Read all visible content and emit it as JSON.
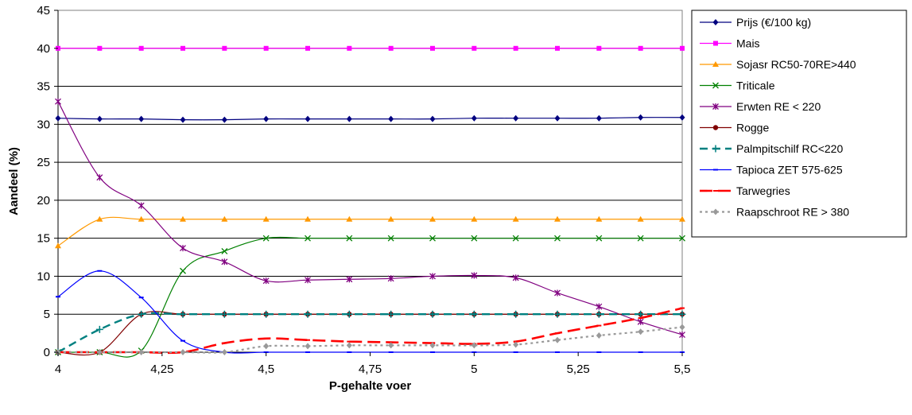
{
  "chart_data": {
    "type": "line",
    "title": "",
    "xlabel": "P-gehalte voer",
    "ylabel": "Aandeel (%)",
    "xlim": [
      4,
      5.5
    ],
    "ylim": [
      0,
      45
    ],
    "x_ticks": [
      4,
      4.25,
      4.5,
      4.75,
      5,
      5.25,
      5.5
    ],
    "x_tick_labels": [
      "4",
      "4,25",
      "4,5",
      "4,75",
      "5",
      "5,25",
      "5,5"
    ],
    "y_ticks": [
      0,
      5,
      10,
      15,
      20,
      25,
      30,
      35,
      40,
      45
    ],
    "y_tick_labels": [
      "0",
      "5",
      "10",
      "15",
      "20",
      "25",
      "30",
      "35",
      "40",
      "45"
    ],
    "grid": "horizontal",
    "legend_position": "right",
    "x": [
      4.0,
      4.1,
      4.2,
      4.3,
      4.4,
      4.5,
      4.6,
      4.7,
      4.8,
      4.9,
      5.0,
      5.1,
      5.2,
      5.3,
      5.4,
      5.5
    ],
    "series": [
      {
        "name": "Prijs (€/100 kg)",
        "color": "#00007f",
        "marker": "diamond",
        "dash": "solid",
        "width": 1.2,
        "values": [
          30.8,
          30.7,
          30.7,
          30.6,
          30.6,
          30.7,
          30.7,
          30.7,
          30.7,
          30.7,
          30.8,
          30.8,
          30.8,
          30.8,
          30.9,
          30.9
        ]
      },
      {
        "name": "Mais",
        "color": "#ff00ff",
        "marker": "square",
        "dash": "solid",
        "width": 1.2,
        "values": [
          40,
          40,
          40,
          40,
          40,
          40,
          40,
          40,
          40,
          40,
          40,
          40,
          40,
          40,
          40,
          40
        ]
      },
      {
        "name": "Sojasr RC50-70RE>440",
        "color": "#ff9900",
        "marker": "triangle",
        "dash": "solid",
        "width": 1.2,
        "values": [
          14.0,
          17.5,
          17.5,
          17.5,
          17.5,
          17.5,
          17.5,
          17.5,
          17.5,
          17.5,
          17.5,
          17.5,
          17.5,
          17.5,
          17.5,
          17.5
        ]
      },
      {
        "name": "Triticale",
        "color": "#008000",
        "marker": "x",
        "dash": "solid",
        "width": 1.2,
        "values": [
          0,
          0,
          0.2,
          10.7,
          13.3,
          15.0,
          15.0,
          15.0,
          15.0,
          15.0,
          15.0,
          15.0,
          15.0,
          15.0,
          15.0,
          15.0
        ]
      },
      {
        "name": "Erwten RE < 220",
        "color": "#800080",
        "marker": "star",
        "dash": "solid",
        "width": 1.2,
        "values": [
          33.0,
          23.0,
          19.3,
          13.7,
          11.9,
          9.4,
          9.5,
          9.6,
          9.7,
          10.0,
          10.1,
          9.8,
          7.8,
          6.0,
          4.0,
          2.3
        ]
      },
      {
        "name": "Rogge",
        "color": "#800000",
        "marker": "circle",
        "dash": "solid",
        "width": 1.2,
        "values": [
          0,
          0,
          5.0,
          5.0,
          5.0,
          5.0,
          5.0,
          5.0,
          5.0,
          5.0,
          5.0,
          5.0,
          5.0,
          5.0,
          5.0,
          5.0
        ]
      },
      {
        "name": "Palmpitschilf RC<220",
        "color": "#008080",
        "marker": "plus",
        "dash": "dash",
        "width": 2.4,
        "values": [
          0,
          3.0,
          5.0,
          5.0,
          5.0,
          5.0,
          5.0,
          5.0,
          5.0,
          5.0,
          5.0,
          5.0,
          5.0,
          5.0,
          5.0,
          5.0
        ]
      },
      {
        "name": "Tapioca ZET 575-625",
        "color": "#0000ff",
        "marker": "dash",
        "dash": "solid",
        "width": 1.2,
        "values": [
          7.3,
          10.7,
          7.2,
          1.5,
          0,
          0,
          0,
          0,
          0,
          0,
          0,
          0,
          0,
          0,
          0,
          0
        ]
      },
      {
        "name": "Tarwegries",
        "color": "#ff0000",
        "marker": "dash",
        "dash": "longdash",
        "width": 2.6,
        "values": [
          0,
          0,
          0,
          0,
          1.2,
          1.8,
          1.6,
          1.4,
          1.3,
          1.2,
          1.1,
          1.4,
          2.5,
          3.5,
          4.5,
          5.8
        ]
      },
      {
        "name": "Raapschroot RE > 380",
        "color": "#999999",
        "marker": "diamond",
        "dash": "dot",
        "width": 2.2,
        "values": [
          0,
          0,
          0,
          0,
          0,
          0.8,
          0.8,
          0.9,
          0.9,
          0.9,
          0.9,
          1.0,
          1.6,
          2.2,
          2.7,
          3.3
        ]
      }
    ]
  }
}
